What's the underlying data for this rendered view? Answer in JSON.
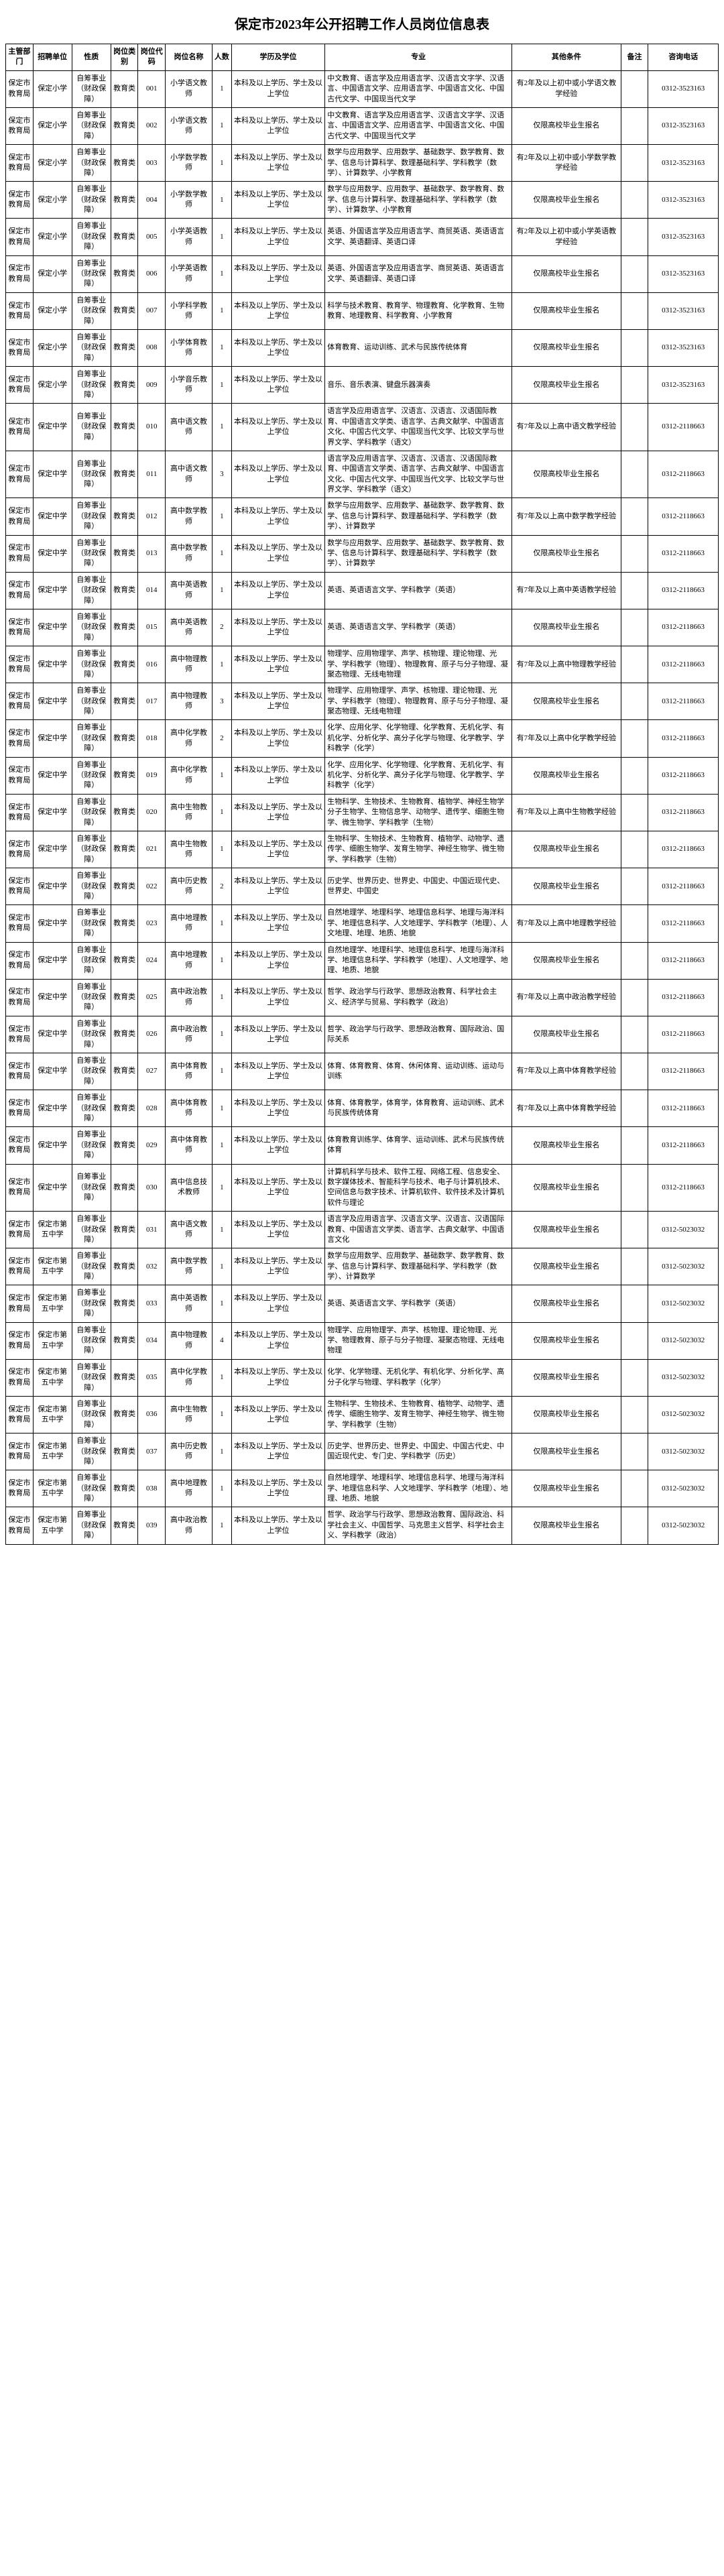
{
  "title": "保定市2023年公开招聘工作人员岗位信息表",
  "headers": {
    "dept": "主管部门",
    "unit": "招聘单位",
    "nature": "性质",
    "category": "岗位类别",
    "code": "岗位代码",
    "name": "岗位名称",
    "num": "人数",
    "edu": "学历及学位",
    "major": "专业",
    "other": "其他条件",
    "note": "备注",
    "tel": "咨询电话"
  },
  "rows": [
    {
      "dept": "保定市教育局",
      "unit": "保定小学",
      "nature": "自筹事业（财政保障）",
      "category": "教育类",
      "code": "001",
      "name": "小学语文教师",
      "num": "1",
      "edu": "本科及以上学历、学士及以上学位",
      "major": "中文教育、语言学及应用语言学、汉语言文字学、汉语言、中国语言文学、应用语言学、中国语言文化、中国古代文学、中国现当代文学",
      "other": "有2年及以上初中或小学语文教学经验",
      "note": "",
      "tel": "0312-3523163"
    },
    {
      "dept": "保定市教育局",
      "unit": "保定小学",
      "nature": "自筹事业（财政保障）",
      "category": "教育类",
      "code": "002",
      "name": "小学语文教师",
      "num": "1",
      "edu": "本科及以上学历、学士及以上学位",
      "major": "中文教育、语言学及应用语言学、汉语言文字学、汉语言、中国语言文学、应用语言学、中国语言文化、中国古代文学、中国现当代文学",
      "other": "仅限高校毕业生报名",
      "note": "",
      "tel": "0312-3523163"
    },
    {
      "dept": "保定市教育局",
      "unit": "保定小学",
      "nature": "自筹事业（财政保障）",
      "category": "教育类",
      "code": "003",
      "name": "小学数学教师",
      "num": "1",
      "edu": "本科及以上学历、学士及以上学位",
      "major": "数学与应用数学、应用数学、基础数学、数学教育、数学、信息与计算科学、数理基础科学、学科教学（数学）、计算数学、小学教育",
      "other": "有2年及以上初中或小学数学教学经验",
      "note": "",
      "tel": "0312-3523163"
    },
    {
      "dept": "保定市教育局",
      "unit": "保定小学",
      "nature": "自筹事业（财政保障）",
      "category": "教育类",
      "code": "004",
      "name": "小学数学教师",
      "num": "1",
      "edu": "本科及以上学历、学士及以上学位",
      "major": "数学与应用数学、应用数学、基础数学、数学教育、数学、信息与计算科学、数理基础科学、学科教学（数学）、计算数学、小学教育",
      "other": "仅限高校毕业生报名",
      "note": "",
      "tel": "0312-3523163"
    },
    {
      "dept": "保定市教育局",
      "unit": "保定小学",
      "nature": "自筹事业（财政保障）",
      "category": "教育类",
      "code": "005",
      "name": "小学英语教师",
      "num": "1",
      "edu": "本科及以上学历、学士及以上学位",
      "major": "英语、外国语言学及应用语言学、商贸英语、英语语言文学、英语翻译、英语口译",
      "other": "有2年及以上初中或小学英语教学经验",
      "note": "",
      "tel": "0312-3523163"
    },
    {
      "dept": "保定市教育局",
      "unit": "保定小学",
      "nature": "自筹事业（财政保障）",
      "category": "教育类",
      "code": "006",
      "name": "小学英语教师",
      "num": "1",
      "edu": "本科及以上学历、学士及以上学位",
      "major": "英语、外国语言学及应用语言学、商贸英语、英语语言文学、英语翻译、英语口译",
      "other": "仅限高校毕业生报名",
      "note": "",
      "tel": "0312-3523163"
    },
    {
      "dept": "保定市教育局",
      "unit": "保定小学",
      "nature": "自筹事业（财政保障）",
      "category": "教育类",
      "code": "007",
      "name": "小学科学教师",
      "num": "1",
      "edu": "本科及以上学历、学士及以上学位",
      "major": "科学与技术教育、教育学、物理教育、化学教育、生物教育、地理教育、科学教育、小学教育",
      "other": "仅限高校毕业生报名",
      "note": "",
      "tel": "0312-3523163"
    },
    {
      "dept": "保定市教育局",
      "unit": "保定小学",
      "nature": "自筹事业（财政保障）",
      "category": "教育类",
      "code": "008",
      "name": "小学体育教师",
      "num": "1",
      "edu": "本科及以上学历、学士及以上学位",
      "major": "体育教育、运动训练、武术与民族传统体育",
      "other": "仅限高校毕业生报名",
      "note": "",
      "tel": "0312-3523163"
    },
    {
      "dept": "保定市教育局",
      "unit": "保定小学",
      "nature": "自筹事业（财政保障）",
      "category": "教育类",
      "code": "009",
      "name": "小学音乐教师",
      "num": "1",
      "edu": "本科及以上学历、学士及以上学位",
      "major": "音乐、音乐表演、键盘乐器演奏",
      "other": "仅限高校毕业生报名",
      "note": "",
      "tel": "0312-3523163"
    },
    {
      "dept": "保定市教育局",
      "unit": "保定中学",
      "nature": "自筹事业（财政保障）",
      "category": "教育类",
      "code": "010",
      "name": "高中语文教师",
      "num": "1",
      "edu": "本科及以上学历、学士及以上学位",
      "major": "语言学及应用语言学、汉语言、汉语言、汉语国际教育、中国语言文学类、语言学、古典文献学、中国语言文化、中国古代文学、中国现当代文学、比较文学与世界文学、学科教学（语文）",
      "other": "有7年及以上高中语文教学经验",
      "note": "",
      "tel": "0312-2118663"
    },
    {
      "dept": "保定市教育局",
      "unit": "保定中学",
      "nature": "自筹事业（财政保障）",
      "category": "教育类",
      "code": "011",
      "name": "高中语文教师",
      "num": "3",
      "edu": "本科及以上学历、学士及以上学位",
      "major": "语言学及应用语言学、汉语言、汉语言、汉语国际教育、中国语言文学类、语言学、古典文献学、中国语言文化、中国古代文学、中国现当代文学、比较文学与世界文学、学科教学（语文）",
      "other": "仅限高校毕业生报名",
      "note": "",
      "tel": "0312-2118663"
    },
    {
      "dept": "保定市教育局",
      "unit": "保定中学",
      "nature": "自筹事业（财政保障）",
      "category": "教育类",
      "code": "012",
      "name": "高中数学教师",
      "num": "1",
      "edu": "本科及以上学历、学士及以上学位",
      "major": "数学与应用数学、应用数学、基础数学、数学教育、数学、信息与计算科学、数理基础科学、学科教学（数学）、计算数学",
      "other": "有7年及以上高中数学教学经验",
      "note": "",
      "tel": "0312-2118663"
    },
    {
      "dept": "保定市教育局",
      "unit": "保定中学",
      "nature": "自筹事业（财政保障）",
      "category": "教育类",
      "code": "013",
      "name": "高中数学教师",
      "num": "1",
      "edu": "本科及以上学历、学士及以上学位",
      "major": "数学与应用数学、应用数学、基础数学、数学教育、数学、信息与计算科学、数理基础科学、学科教学（数学）、计算数学",
      "other": "仅限高校毕业生报名",
      "note": "",
      "tel": "0312-2118663"
    },
    {
      "dept": "保定市教育局",
      "unit": "保定中学",
      "nature": "自筹事业（财政保障）",
      "category": "教育类",
      "code": "014",
      "name": "高中英语教师",
      "num": "1",
      "edu": "本科及以上学历、学士及以上学位",
      "major": "英语、英语语言文学、学科教学（英语）",
      "other": "有7年及以上高中英语教学经验",
      "note": "",
      "tel": "0312-2118663"
    },
    {
      "dept": "保定市教育局",
      "unit": "保定中学",
      "nature": "自筹事业（财政保障）",
      "category": "教育类",
      "code": "015",
      "name": "高中英语教师",
      "num": "2",
      "edu": "本科及以上学历、学士及以上学位",
      "major": "英语、英语语言文学、学科教学（英语）",
      "other": "仅限高校毕业生报名",
      "note": "",
      "tel": "0312-2118663"
    },
    {
      "dept": "保定市教育局",
      "unit": "保定中学",
      "nature": "自筹事业（财政保障）",
      "category": "教育类",
      "code": "016",
      "name": "高中物理教师",
      "num": "1",
      "edu": "本科及以上学历、学士及以上学位",
      "major": "物理学、应用物理学、声学、核物理、理论物理、光学、学科教学（物理）、物理教育、原子与分子物理、凝聚态物理、无线电物理",
      "other": "有7年及以上高中物理教学经验",
      "note": "",
      "tel": "0312-2118663"
    },
    {
      "dept": "保定市教育局",
      "unit": "保定中学",
      "nature": "自筹事业（财政保障）",
      "category": "教育类",
      "code": "017",
      "name": "高中物理教师",
      "num": "3",
      "edu": "本科及以上学历、学士及以上学位",
      "major": "物理学、应用物理学、声学、核物理、理论物理、光学、学科教学（物理）、物理教育、原子与分子物理、凝聚态物理、无线电物理",
      "other": "仅限高校毕业生报名",
      "note": "",
      "tel": "0312-2118663"
    },
    {
      "dept": "保定市教育局",
      "unit": "保定中学",
      "nature": "自筹事业（财政保障）",
      "category": "教育类",
      "code": "018",
      "name": "高中化学教师",
      "num": "2",
      "edu": "本科及以上学历、学士及以上学位",
      "major": "化学、应用化学、化学物理、化学教育、无机化学、有机化学、分析化学、高分子化学与物理、化学教学、学科教学（化学）",
      "other": "有7年及以上高中化学教学经验",
      "note": "",
      "tel": "0312-2118663"
    },
    {
      "dept": "保定市教育局",
      "unit": "保定中学",
      "nature": "自筹事业（财政保障）",
      "category": "教育类",
      "code": "019",
      "name": "高中化学教师",
      "num": "1",
      "edu": "本科及以上学历、学士及以上学位",
      "major": "化学、应用化学、化学物理、化学教育、无机化学、有机化学、分析化学、高分子化学与物理、化学教学、学科教学（化学）",
      "other": "仅限高校毕业生报名",
      "note": "",
      "tel": "0312-2118663"
    },
    {
      "dept": "保定市教育局",
      "unit": "保定中学",
      "nature": "自筹事业（财政保障）",
      "category": "教育类",
      "code": "020",
      "name": "高中生物教师",
      "num": "1",
      "edu": "本科及以上学历、学士及以上学位",
      "major": "生物科学、生物技术、生物教育、植物学、神经生物学分子生物学、生物信息学、动物学、遗传学、细胞生物学、微生物学、学科教学（生物）",
      "other": "有7年及以上高中生物教学经验",
      "note": "",
      "tel": "0312-2118663"
    },
    {
      "dept": "保定市教育局",
      "unit": "保定中学",
      "nature": "自筹事业（财政保障）",
      "category": "教育类",
      "code": "021",
      "name": "高中生物教师",
      "num": "1",
      "edu": "本科及以上学历、学士及以上学位",
      "major": "生物科学、生物技术、生物教育、植物学、动物学、遗传学、细胞生物学、发育生物学、神经生物学、微生物学、学科教学（生物）",
      "other": "仅限高校毕业生报名",
      "note": "",
      "tel": "0312-2118663"
    },
    {
      "dept": "保定市教育局",
      "unit": "保定中学",
      "nature": "自筹事业（财政保障）",
      "category": "教育类",
      "code": "022",
      "name": "高中历史教师",
      "num": "2",
      "edu": "本科及以上学历、学士及以上学位",
      "major": "历史学、世界历史、世界史、中国史、中国近现代史、世界史、中国史",
      "other": "仅限高校毕业生报名",
      "note": "",
      "tel": "0312-2118663"
    },
    {
      "dept": "保定市教育局",
      "unit": "保定中学",
      "nature": "自筹事业（财政保障）",
      "category": "教育类",
      "code": "023",
      "name": "高中地理教师",
      "num": "1",
      "edu": "本科及以上学历、学士及以上学位",
      "major": "自然地理学、地理科学、地理信息科学、地理与海洋科学、地理信息科学、人文地理学、学科教学（地理）、人文地理、地理、地质、地貌",
      "other": "有7年及以上高中地理教学经验",
      "note": "",
      "tel": "0312-2118663"
    },
    {
      "dept": "保定市教育局",
      "unit": "保定中学",
      "nature": "自筹事业（财政保障）",
      "category": "教育类",
      "code": "024",
      "name": "高中地理教师",
      "num": "1",
      "edu": "本科及以上学历、学士及以上学位",
      "major": "自然地理学、地理科学、地理信息科学、地理与海洋科学、地理信息科学、学科教学（地理）、人文地理学、地理、地质、地貌",
      "other": "仅限高校毕业生报名",
      "note": "",
      "tel": "0312-2118663"
    },
    {
      "dept": "保定市教育局",
      "unit": "保定中学",
      "nature": "自筹事业（财政保障）",
      "category": "教育类",
      "code": "025",
      "name": "高中政治教师",
      "num": "1",
      "edu": "本科及以上学历、学士及以上学位",
      "major": "哲学、政治学与行政学、思想政治教育、科学社会主义、经济学与贸易、学科教学（政治）",
      "other": "有7年及以上高中政治教学经验",
      "note": "",
      "tel": "0312-2118663"
    },
    {
      "dept": "保定市教育局",
      "unit": "保定中学",
      "nature": "自筹事业（财政保障）",
      "category": "教育类",
      "code": "026",
      "name": "高中政治教师",
      "num": "1",
      "edu": "本科及以上学历、学士及以上学位",
      "major": "哲学、政治学与行政学、思想政治教育、国际政治、国际关系",
      "other": "仅限高校毕业生报名",
      "note": "",
      "tel": "0312-2118663"
    },
    {
      "dept": "保定市教育局",
      "unit": "保定中学",
      "nature": "自筹事业（财政保障）",
      "category": "教育类",
      "code": "027",
      "name": "高中体育教师",
      "num": "1",
      "edu": "本科及以上学历、学士及以上学位",
      "major": "体育、体育教育、体育、休闲体育、运动训练、运动与训练",
      "other": "有7年及以上高中体育教学经验",
      "note": "",
      "tel": "0312-2118663"
    },
    {
      "dept": "保定市教育局",
      "unit": "保定中学",
      "nature": "自筹事业（财政保障）",
      "category": "教育类",
      "code": "028",
      "name": "高中体育教师",
      "num": "1",
      "edu": "本科及以上学历、学士及以上学位",
      "major": "体育、体育教学，体育学，体育教育、运动训练、武术与民族传统体育",
      "other": "有7年及以上高中体育教学经验",
      "note": "",
      "tel": "0312-2118663"
    },
    {
      "dept": "保定市教育局",
      "unit": "保定中学",
      "nature": "自筹事业（财政保障）",
      "category": "教育类",
      "code": "029",
      "name": "高中体育教师",
      "num": "1",
      "edu": "本科及以上学历、学士及以上学位",
      "major": "体育教育训练学、体育学、运动训练、武术与民族传统体育",
      "other": "仅限高校毕业生报名",
      "note": "",
      "tel": "0312-2118663"
    },
    {
      "dept": "保定市教育局",
      "unit": "保定中学",
      "nature": "自筹事业（财政保障）",
      "category": "教育类",
      "code": "030",
      "name": "高中信息技术教师",
      "num": "1",
      "edu": "本科及以上学历、学士及以上学位",
      "major": "计算机科学与技术、软件工程、网络工程、信息安全、数字媒体技术、智能科学与技术、电子与计算机技术、空间信息与数字技术、计算机软件、软件技术及计算机软件与理论",
      "other": "仅限高校毕业生报名",
      "note": "",
      "tel": "0312-2118663"
    },
    {
      "dept": "保定市教育局",
      "unit": "保定市第五中学",
      "nature": "自筹事业（财政保障）",
      "category": "教育类",
      "code": "031",
      "name": "高中语文教师",
      "num": "1",
      "edu": "本科及以上学历、学士及以上学位",
      "major": "语言学及应用语言学、汉语言文学、汉语言、汉语国际教育、中国语言文学类、语言学、古典文献学、中国语言文化",
      "other": "仅限高校毕业生报名",
      "note": "",
      "tel": "0312-5023032"
    },
    {
      "dept": "保定市教育局",
      "unit": "保定市第五中学",
      "nature": "自筹事业（财政保障）",
      "category": "教育类",
      "code": "032",
      "name": "高中数学教师",
      "num": "1",
      "edu": "本科及以上学历、学士及以上学位",
      "major": "数学与应用数学、应用数学、基础数学、数学教育、数学、信息与计算科学、数理基础科学、学科教学（数学）、计算数学",
      "other": "仅限高校毕业生报名",
      "note": "",
      "tel": "0312-5023032"
    },
    {
      "dept": "保定市教育局",
      "unit": "保定市第五中学",
      "nature": "自筹事业（财政保障）",
      "category": "教育类",
      "code": "033",
      "name": "高中英语教师",
      "num": "1",
      "edu": "本科及以上学历、学士及以上学位",
      "major": "英语、英语语言文学、学科教学（英语）",
      "other": "仅限高校毕业生报名",
      "note": "",
      "tel": "0312-5023032"
    },
    {
      "dept": "保定市教育局",
      "unit": "保定市第五中学",
      "nature": "自筹事业（财政保障）",
      "category": "教育类",
      "code": "034",
      "name": "高中物理教师",
      "num": "4",
      "edu": "本科及以上学历、学士及以上学位",
      "major": "物理学、应用物理学、声学、核物理、理论物理、光学、物理教育、原子与分子物理、凝聚态物理、无线电物理",
      "other": "仅限高校毕业生报名",
      "note": "",
      "tel": "0312-5023032"
    },
    {
      "dept": "保定市教育局",
      "unit": "保定市第五中学",
      "nature": "自筹事业（财政保障）",
      "category": "教育类",
      "code": "035",
      "name": "高中化学教师",
      "num": "1",
      "edu": "本科及以上学历、学士及以上学位",
      "major": "化学、化学物理、无机化学、有机化学、分析化学、高分子化学与物理、学科教学（化学）",
      "other": "仅限高校毕业生报名",
      "note": "",
      "tel": "0312-5023032"
    },
    {
      "dept": "保定市教育局",
      "unit": "保定市第五中学",
      "nature": "自筹事业（财政保障）",
      "category": "教育类",
      "code": "036",
      "name": "高中生物教师",
      "num": "1",
      "edu": "本科及以上学历、学士及以上学位",
      "major": "生物科学、生物技术、生物教育、植物学、动物学、遗传学、细胞生物学、发育生物学、神经生物学、微生物学、学科教学（生物）",
      "other": "仅限高校毕业生报名",
      "note": "",
      "tel": "0312-5023032"
    },
    {
      "dept": "保定市教育局",
      "unit": "保定市第五中学",
      "nature": "自筹事业（财政保障）",
      "category": "教育类",
      "code": "037",
      "name": "高中历史教师",
      "num": "1",
      "edu": "本科及以上学历、学士及以上学位",
      "major": "历史学、世界历史、世界史、中国史、中国古代史、中国近现代史、专门史、学科教学（历史）",
      "other": "仅限高校毕业生报名",
      "note": "",
      "tel": "0312-5023032"
    },
    {
      "dept": "保定市教育局",
      "unit": "保定市第五中学",
      "nature": "自筹事业（财政保障）",
      "category": "教育类",
      "code": "038",
      "name": "高中地理教师",
      "num": "1",
      "edu": "本科及以上学历、学士及以上学位",
      "major": "自然地理学、地理科学、地理信息科学、地理与海洋科学、地理信息科学、人文地理学、学科教学（地理）、地理、地质、地貌",
      "other": "仅限高校毕业生报名",
      "note": "",
      "tel": "0312-5023032"
    },
    {
      "dept": "保定市教育局",
      "unit": "保定市第五中学",
      "nature": "自筹事业（财政保障）",
      "category": "教育类",
      "code": "039",
      "name": "高中政治教师",
      "num": "1",
      "edu": "本科及以上学历、学士及以上学位",
      "major": "哲学、政治学与行政学、思想政治教育、国际政治、科学社会主义、中国哲学、马克思主义哲学、科学社会主义、学科教学（政治）",
      "other": "仅限高校毕业生报名",
      "note": "",
      "tel": "0312-5023032"
    }
  ]
}
